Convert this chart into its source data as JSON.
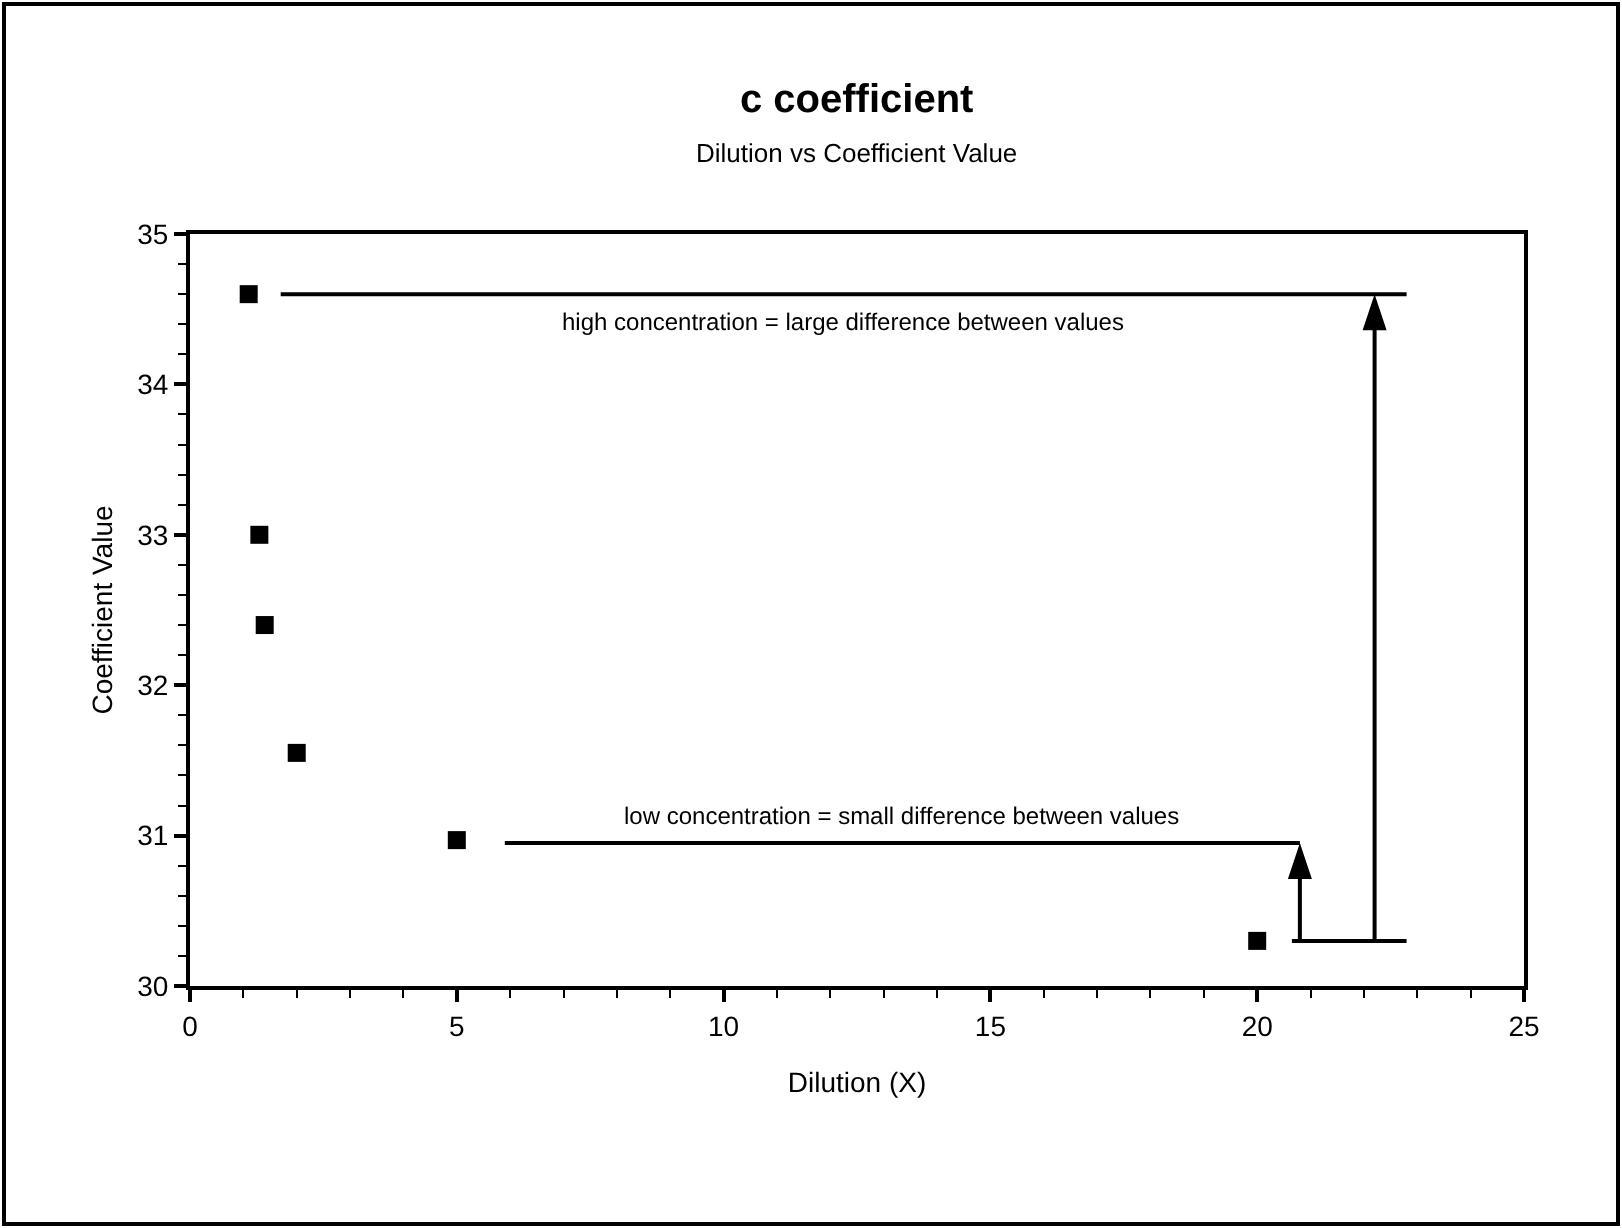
{
  "chart_data": {
    "type": "scatter",
    "title": "c coefficient",
    "subtitle": "Dilution vs Coefficient Value",
    "xlabel": "Dilution (X)",
    "ylabel": "Coefficient Value",
    "x": [
      1.1,
      1.3,
      1.4,
      2,
      5,
      20
    ],
    "series": [
      {
        "color": "#000000",
        "values": [
          34.6,
          33.0,
          32.4,
          31.55,
          30.97,
          30.3
        ]
      }
    ],
    "xlim": [
      0,
      25
    ],
    "xticks": [
      0,
      5,
      10,
      15,
      20,
      25
    ],
    "ylim": [
      30,
      35
    ],
    "yticks": [
      30,
      31,
      32,
      33,
      34,
      35
    ],
    "marker": "square",
    "ref_lines": [
      {
        "axis": "y",
        "value": 34.6,
        "label": "high concentration = large difference between values",
        "color": "#000000"
      },
      {
        "axis": "y",
        "value": 30.95,
        "label": "low concentration = small difference between values",
        "color": "#000000"
      }
    ]
  }
}
